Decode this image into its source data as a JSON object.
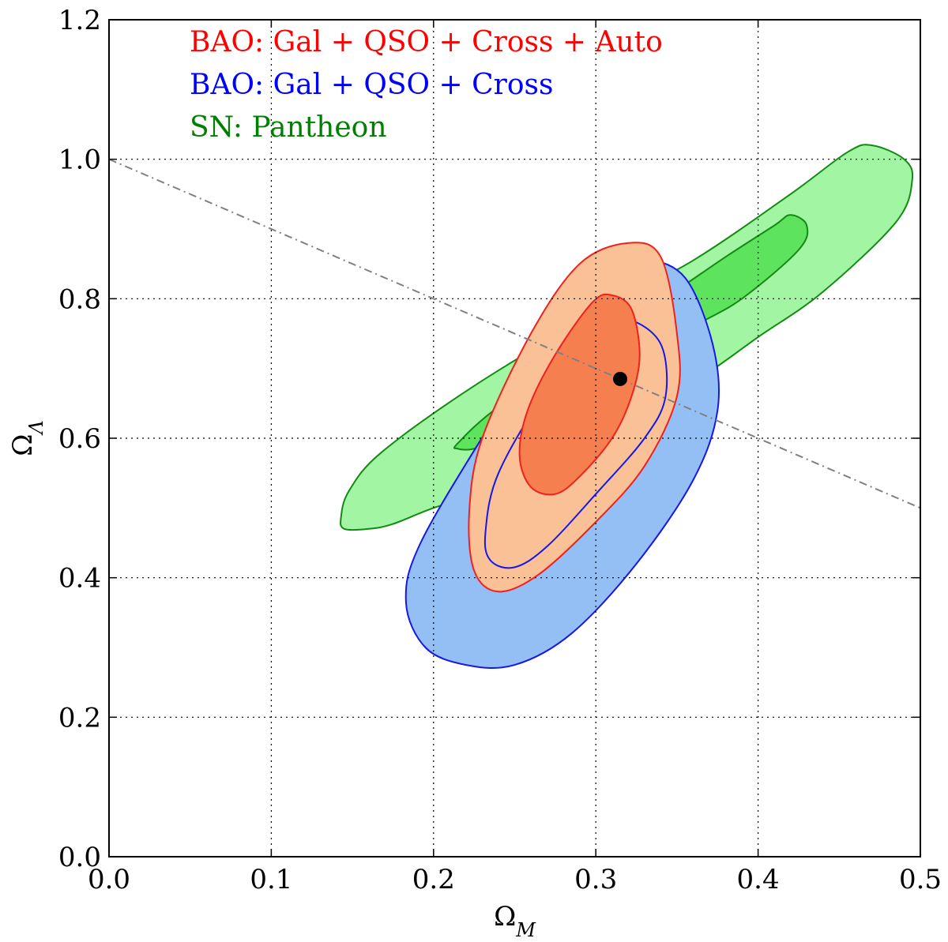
{
  "chart_data": {
    "type": "contour",
    "xlabel": "Ω_M",
    "ylabel": "Ω_Λ",
    "xlim": [
      0.0,
      0.5
    ],
    "ylim": [
      0.0,
      1.2
    ],
    "x_ticks": [
      0.0,
      0.1,
      0.2,
      0.3,
      0.4,
      0.5
    ],
    "y_ticks": [
      0.0,
      0.2,
      0.4,
      0.6,
      0.8,
      1.0,
      1.2
    ],
    "x_tick_labels": [
      "0.0",
      "0.1",
      "0.2",
      "0.3",
      "0.4",
      "0.5"
    ],
    "y_tick_labels": [
      "0.0",
      "0.2",
      "0.4",
      "0.6",
      "0.8",
      "1.0",
      "1.2"
    ],
    "grid": true,
    "legend_placement": "top-left",
    "legend": [
      {
        "label": "BAO: Gal + QSO + Cross + Auto",
        "color": "#ff0000"
      },
      {
        "label": "BAO: Gal + QSO + Cross",
        "color": "#0000ff"
      },
      {
        "label": "SN: Pantheon",
        "color": "#008000"
      }
    ],
    "flat_line": {
      "x": [
        0.0,
        0.5
      ],
      "y": [
        1.0,
        0.5
      ],
      "style": "dash-dot",
      "color": "#808080"
    },
    "best_fit_point": {
      "x": 0.315,
      "y": 0.685
    },
    "contours": [
      {
        "name": "SN: Pantheon",
        "level": "2-sigma",
        "fill": "#a2f5a2",
        "stroke": "#138a13",
        "points": [
          [
            0.143,
            0.487
          ],
          [
            0.148,
            0.525
          ],
          [
            0.168,
            0.58
          ],
          [
            0.225,
            0.675
          ],
          [
            0.3,
            0.78
          ],
          [
            0.36,
            0.855
          ],
          [
            0.42,
            0.95
          ],
          [
            0.455,
            1.01
          ],
          [
            0.47,
            1.02
          ],
          [
            0.49,
            1.0
          ],
          [
            0.495,
            0.97
          ],
          [
            0.485,
            0.91
          ],
          [
            0.44,
            0.81
          ],
          [
            0.4,
            0.745
          ],
          [
            0.36,
            0.68
          ],
          [
            0.3,
            0.6
          ],
          [
            0.24,
            0.53
          ],
          [
            0.2,
            0.5
          ],
          [
            0.175,
            0.477
          ],
          [
            0.16,
            0.47
          ],
          [
            0.145,
            0.47
          ]
        ]
      },
      {
        "name": "SN: Pantheon",
        "level": "1-sigma",
        "fill": "#5ee35e",
        "stroke": "#138a13",
        "points": [
          [
            0.215,
            0.593
          ],
          [
            0.24,
            0.645
          ],
          [
            0.3,
            0.74
          ],
          [
            0.345,
            0.805
          ],
          [
            0.38,
            0.86
          ],
          [
            0.41,
            0.905
          ],
          [
            0.42,
            0.92
          ],
          [
            0.43,
            0.905
          ],
          [
            0.425,
            0.87
          ],
          [
            0.39,
            0.8
          ],
          [
            0.36,
            0.76
          ],
          [
            0.3,
            0.68
          ],
          [
            0.26,
            0.63
          ],
          [
            0.24,
            0.6
          ],
          [
            0.225,
            0.585
          ],
          [
            0.215,
            0.585
          ]
        ]
      },
      {
        "name": "BAO: Gal + QSO + Cross",
        "level": "2-sigma",
        "fill": "#93bff5",
        "stroke": "#1717e6",
        "points": [
          [
            0.183,
            0.365
          ],
          [
            0.192,
            0.45
          ],
          [
            0.235,
            0.62
          ],
          [
            0.275,
            0.765
          ],
          [
            0.305,
            0.83
          ],
          [
            0.33,
            0.855
          ],
          [
            0.355,
            0.83
          ],
          [
            0.372,
            0.735
          ],
          [
            0.375,
            0.64
          ],
          [
            0.36,
            0.54
          ],
          [
            0.325,
            0.42
          ],
          [
            0.285,
            0.32
          ],
          [
            0.25,
            0.275
          ],
          [
            0.22,
            0.275
          ],
          [
            0.195,
            0.3
          ]
        ]
      },
      {
        "name": "BAO: Gal + QSO + Cross + Auto",
        "level": "2-sigma",
        "fill": "#f9c195",
        "stroke": "#f02020",
        "points": [
          [
            0.222,
            0.495
          ],
          [
            0.23,
            0.6
          ],
          [
            0.26,
            0.75
          ],
          [
            0.29,
            0.85
          ],
          [
            0.32,
            0.88
          ],
          [
            0.34,
            0.86
          ],
          [
            0.35,
            0.75
          ],
          [
            0.35,
            0.66
          ],
          [
            0.33,
            0.56
          ],
          [
            0.3,
            0.48
          ],
          [
            0.265,
            0.405
          ],
          [
            0.24,
            0.38
          ],
          [
            0.225,
            0.41
          ]
        ]
      },
      {
        "name": "BAO: Gal + QSO + Cross",
        "level": "1-sigma",
        "fill": "none",
        "stroke": "#1717e6",
        "points": [
          [
            0.232,
            0.465
          ],
          [
            0.24,
            0.55
          ],
          [
            0.27,
            0.67
          ],
          [
            0.3,
            0.755
          ],
          [
            0.32,
            0.77
          ],
          [
            0.34,
            0.735
          ],
          [
            0.343,
            0.66
          ],
          [
            0.33,
            0.6
          ],
          [
            0.3,
            0.52
          ],
          [
            0.27,
            0.445
          ],
          [
            0.25,
            0.415
          ],
          [
            0.235,
            0.425
          ]
        ]
      },
      {
        "name": "BAO: Gal + QSO + Cross + Auto",
        "level": "1-sigma",
        "fill": "#f57f4f",
        "stroke": "#f02020",
        "points": [
          [
            0.253,
            0.575
          ],
          [
            0.258,
            0.64
          ],
          [
            0.275,
            0.72
          ],
          [
            0.298,
            0.795
          ],
          [
            0.31,
            0.805
          ],
          [
            0.322,
            0.785
          ],
          [
            0.327,
            0.72
          ],
          [
            0.322,
            0.66
          ],
          [
            0.31,
            0.6
          ],
          [
            0.29,
            0.545
          ],
          [
            0.275,
            0.52
          ],
          [
            0.26,
            0.53
          ]
        ]
      }
    ]
  }
}
